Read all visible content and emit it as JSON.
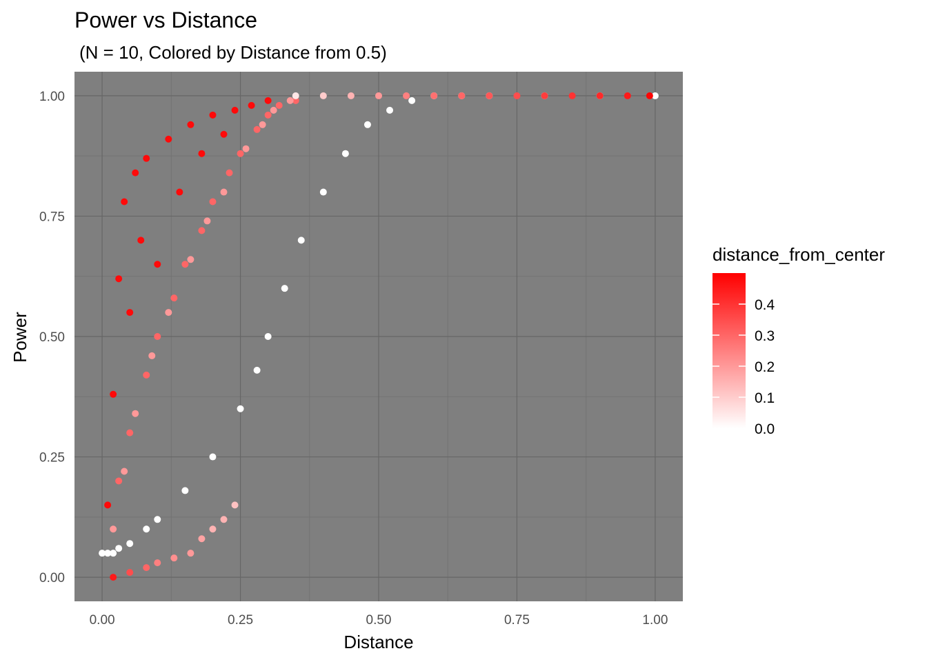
{
  "chart_data": {
    "type": "scatter",
    "title": "Power vs Distance",
    "subtitle": "(N = 10, Colored by Distance from 0.5)",
    "xlabel": "Distance",
    "ylabel": "Power",
    "xlim": [
      -0.05,
      1.05
    ],
    "ylim": [
      -0.05,
      1.05
    ],
    "x_ticks": [
      0.0,
      0.25,
      0.5,
      0.75,
      1.0
    ],
    "x_tick_labels": [
      "0.00",
      "0.25",
      "0.50",
      "0.75",
      "1.00"
    ],
    "y_ticks": [
      0.0,
      0.25,
      0.5,
      0.75,
      1.0
    ],
    "y_tick_labels": [
      "0.00",
      "0.25",
      "0.50",
      "0.75",
      "1.00"
    ],
    "panel_background": "#7f7f7f",
    "grid": true,
    "legend": {
      "title": "distance_from_center",
      "placement": "right",
      "range": [
        0.0,
        0.5
      ],
      "low_color": "#ffffff",
      "high_color": "#ff0000",
      "breaks": [
        0.0,
        0.1,
        0.2,
        0.3,
        0.4
      ],
      "labels": [
        "0.0",
        "0.1",
        "0.2",
        "0.3",
        "0.4"
      ]
    },
    "series": [
      {
        "x": [
          0.0,
          0.01,
          0.02,
          0.03,
          0.05,
          0.08,
          0.1,
          0.15,
          0.2,
          0.25,
          0.28,
          0.3,
          0.33,
          0.36,
          0.4,
          0.44,
          0.48,
          0.52,
          0.56,
          0.6,
          0.65,
          0.7,
          0.8,
          0.9,
          1.0
        ],
        "y": [
          0.05,
          0.05,
          0.05,
          0.06,
          0.07,
          0.1,
          0.12,
          0.18,
          0.25,
          0.35,
          0.43,
          0.5,
          0.6,
          0.7,
          0.8,
          0.88,
          0.94,
          0.97,
          0.99,
          1.0,
          1.0,
          1.0,
          1.0,
          1.0,
          1.0
        ],
        "distance_from_center": [
          0.0,
          0.0,
          0.0,
          0.0,
          0.0,
          0.0,
          0.0,
          0.0,
          0.0,
          0.0,
          0.0,
          0.0,
          0.0,
          0.0,
          0.0,
          0.0,
          0.0,
          0.0,
          0.0,
          0.0,
          0.0,
          0.0,
          0.0,
          0.0,
          0.0
        ]
      },
      {
        "x": [
          0.03,
          0.05,
          0.08,
          0.1,
          0.13,
          0.15,
          0.18,
          0.2,
          0.23,
          0.25,
          0.28,
          0.3,
          0.32,
          0.35,
          0.02,
          0.04,
          0.06,
          0.09,
          0.12,
          0.16,
          0.19,
          0.22,
          0.26,
          0.29,
          0.31,
          0.34
        ],
        "y": [
          0.2,
          0.3,
          0.42,
          0.5,
          0.58,
          0.65,
          0.72,
          0.78,
          0.84,
          0.88,
          0.93,
          0.96,
          0.98,
          0.99,
          0.1,
          0.22,
          0.34,
          0.46,
          0.55,
          0.66,
          0.74,
          0.8,
          0.89,
          0.94,
          0.97,
          0.99
        ],
        "distance_from_center": [
          0.3,
          0.3,
          0.3,
          0.3,
          0.3,
          0.3,
          0.3,
          0.3,
          0.3,
          0.3,
          0.3,
          0.3,
          0.3,
          0.3,
          0.2,
          0.2,
          0.2,
          0.2,
          0.2,
          0.2,
          0.2,
          0.2,
          0.2,
          0.2,
          0.2,
          0.2
        ]
      },
      {
        "x": [
          0.01,
          0.02,
          0.03,
          0.04,
          0.05,
          0.06,
          0.07,
          0.08,
          0.1,
          0.12,
          0.14,
          0.16,
          0.18,
          0.2,
          0.22,
          0.24,
          0.27,
          0.3
        ],
        "y": [
          0.15,
          0.38,
          0.62,
          0.78,
          0.55,
          0.84,
          0.7,
          0.87,
          0.65,
          0.91,
          0.8,
          0.94,
          0.88,
          0.96,
          0.92,
          0.97,
          0.98,
          0.99
        ],
        "distance_from_center": [
          0.48,
          0.48,
          0.48,
          0.48,
          0.48,
          0.48,
          0.48,
          0.48,
          0.48,
          0.48,
          0.48,
          0.48,
          0.48,
          0.48,
          0.48,
          0.48,
          0.48,
          0.48
        ]
      },
      {
        "x": [
          0.02,
          0.05,
          0.08,
          0.1,
          0.13,
          0.16,
          0.18,
          0.2,
          0.22,
          0.24
        ],
        "y": [
          0.0,
          0.01,
          0.02,
          0.03,
          0.04,
          0.05,
          0.08,
          0.1,
          0.12,
          0.15
        ],
        "distance_from_center": [
          0.45,
          0.35,
          0.3,
          0.25,
          0.22,
          0.2,
          0.18,
          0.15,
          0.15,
          0.12
        ]
      },
      {
        "x": [
          0.35,
          0.4,
          0.45,
          0.5,
          0.55,
          0.6,
          0.65,
          0.7,
          0.75,
          0.8,
          0.85,
          0.9,
          0.95,
          0.99
        ],
        "y": [
          1.0,
          1.0,
          1.0,
          1.0,
          1.0,
          1.0,
          1.0,
          1.0,
          1.0,
          1.0,
          1.0,
          1.0,
          1.0,
          1.0
        ],
        "distance_from_center": [
          0.05,
          0.1,
          0.15,
          0.2,
          0.25,
          0.28,
          0.3,
          0.33,
          0.35,
          0.38,
          0.4,
          0.42,
          0.45,
          0.49
        ]
      }
    ]
  }
}
